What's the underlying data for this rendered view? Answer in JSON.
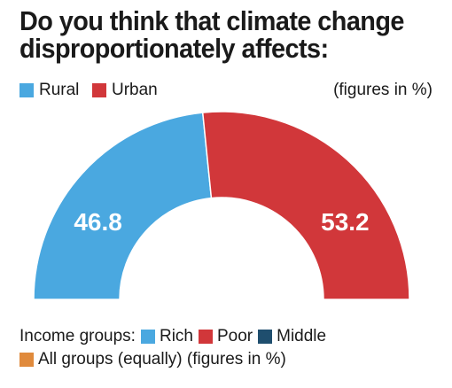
{
  "title_lines": [
    "Do you think that climate change",
    "disproportionately affects:"
  ],
  "legend": [
    {
      "label": "Rural",
      "color": "#4aa8e0"
    },
    {
      "label": "Urban",
      "color": "#d1373a"
    }
  ],
  "units_note": "(figures in %)",
  "chart_data": {
    "type": "pie",
    "subtype": "half-donut",
    "categories": [
      "Rural",
      "Urban"
    ],
    "values": [
      46.8,
      53.2
    ],
    "labels": [
      "46.8",
      "53.2"
    ],
    "colors": [
      "#4aa8e0",
      "#d1373a"
    ],
    "title": "Do you think that climate change disproportionately affects:",
    "legend_position": "top-left"
  },
  "income_legend": {
    "prefix": "Income groups:",
    "items": [
      {
        "label": "Rich",
        "color": "#4aa8e0"
      },
      {
        "label": "Poor",
        "color": "#d1373a"
      },
      {
        "label": "Middle",
        "color": "#1f4e6e"
      },
      {
        "label": "All groups (equally) (figures in %)",
        "color": "#e08a3c"
      }
    ]
  }
}
